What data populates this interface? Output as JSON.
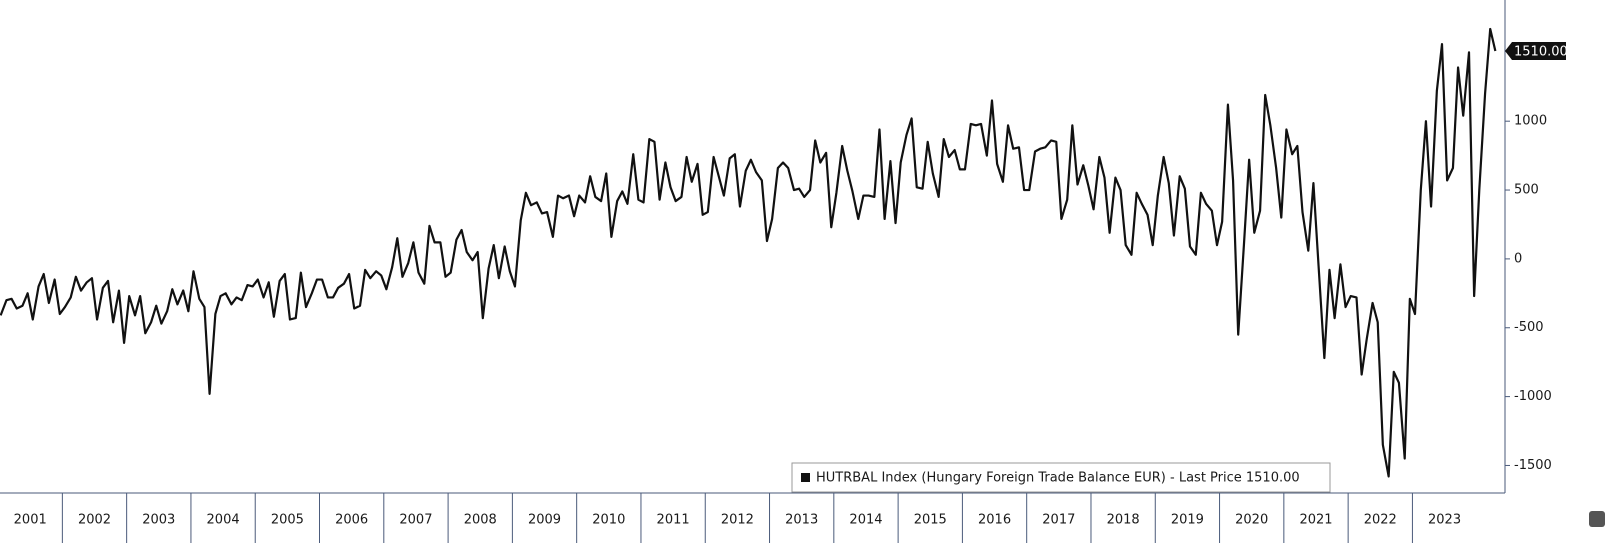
{
  "chart_data": {
    "type": "line",
    "series": [
      {
        "name": "HUTRBAL Index (Hungary Foreign Trade Balance EUR) - Last Price 1510.00",
        "color": "#111111",
        "values": [
          -410,
          -300,
          -290,
          -360,
          -340,
          -250,
          -440,
          -200,
          -110,
          -320,
          -150,
          -400,
          -350,
          -280,
          -130,
          -230,
          -170,
          -140,
          -440,
          -210,
          -160,
          -460,
          -230,
          -610,
          -270,
          -410,
          -270,
          -540,
          -460,
          -340,
          -470,
          -380,
          -220,
          -330,
          -230,
          -380,
          -90,
          -290,
          -350,
          -980,
          -400,
          -270,
          -250,
          -330,
          -280,
          -300,
          -190,
          -200,
          -150,
          -280,
          -170,
          -420,
          -160,
          -110,
          -440,
          -430,
          -100,
          -350,
          -250,
          -150,
          -150,
          -280,
          -280,
          -210,
          -180,
          -110,
          -360,
          -340,
          -80,
          -140,
          -90,
          -120,
          -220,
          -60,
          150,
          -130,
          -30,
          120,
          -100,
          -180,
          240,
          120,
          120,
          -130,
          -100,
          140,
          210,
          50,
          -10,
          50,
          -430,
          -70,
          100,
          -140,
          90,
          -90,
          -200,
          280,
          480,
          390,
          410,
          330,
          340,
          160,
          460,
          440,
          460,
          310,
          460,
          410,
          600,
          450,
          420,
          620,
          160,
          420,
          490,
          400,
          760,
          430,
          410,
          870,
          850,
          430,
          700,
          520,
          420,
          450,
          740,
          560,
          690,
          320,
          340,
          740,
          600,
          460,
          730,
          760,
          380,
          640,
          720,
          630,
          570,
          130,
          290,
          660,
          700,
          660,
          500,
          510,
          450,
          500,
          860,
          700,
          770,
          230,
          480,
          820,
          640,
          490,
          290,
          460,
          460,
          450,
          940,
          290,
          710,
          260,
          700,
          900,
          1020,
          520,
          510,
          850,
          620,
          450,
          870,
          740,
          790,
          650,
          650,
          980,
          970,
          980,
          750,
          1150,
          690,
          560,
          970,
          800,
          810,
          500,
          500,
          780,
          800,
          810,
          860,
          850,
          290,
          430,
          970,
          540,
          680,
          530,
          360,
          740,
          590,
          190,
          590,
          500,
          100,
          30,
          480,
          400,
          320,
          100,
          460,
          740,
          550,
          170,
          600,
          510,
          90,
          30,
          480,
          400,
          350,
          100,
          270,
          1120,
          570,
          -550,
          110,
          720,
          190,
          350,
          1190,
          970,
          660,
          300,
          940,
          760,
          820,
          340,
          60,
          550,
          -50,
          -720,
          -80,
          -430,
          -40,
          -350,
          -270,
          -280,
          -840,
          -580,
          -320,
          -460,
          -1350,
          -1580,
          -820,
          -900,
          -1450,
          -290,
          -400,
          500,
          1000,
          380,
          1220,
          1560,
          570,
          660,
          1390,
          1040,
          1500,
          -270,
          500,
          1200,
          1670,
          1510
        ]
      }
    ],
    "x": [
      2001.04,
      2001.13,
      2001.21,
      2001.29,
      2001.38,
      2001.46,
      2001.54,
      2001.63,
      2001.71,
      2001.79,
      2001.88,
      2001.96,
      2002.04,
      2002.13,
      2002.21,
      2002.29,
      2002.38,
      2002.46,
      2002.54,
      2002.63,
      2002.71,
      2002.79,
      2002.88,
      2002.96,
      2003.04,
      2003.13,
      2003.21,
      2003.29,
      2003.38,
      2003.46,
      2003.54,
      2003.63,
      2003.71,
      2003.79,
      2003.88,
      2003.96,
      2004.04,
      2004.13,
      2004.21,
      2004.29,
      2004.38,
      2004.46,
      2004.54,
      2004.63,
      2004.71,
      2004.79,
      2004.88,
      2004.96,
      2005.04,
      2005.13,
      2005.21,
      2005.29,
      2005.38,
      2005.46,
      2005.54,
      2005.63,
      2005.71,
      2005.79,
      2005.88,
      2005.96,
      2006.04,
      2006.13,
      2006.21,
      2006.29,
      2006.38,
      2006.46,
      2006.54,
      2006.63,
      2006.71,
      2006.79,
      2006.88,
      2006.96,
      2007.04,
      2007.13,
      2007.21,
      2007.29,
      2007.38,
      2007.46,
      2007.54,
      2007.63,
      2007.71,
      2007.79,
      2007.88,
      2007.96,
      2008.04,
      2008.13,
      2008.21,
      2008.29,
      2008.38,
      2008.46,
      2008.54,
      2008.63,
      2008.71,
      2008.79,
      2008.88,
      2008.96,
      2009.04,
      2009.13,
      2009.21,
      2009.29,
      2009.38,
      2009.46,
      2009.54,
      2009.63,
      2009.71,
      2009.79,
      2009.88,
      2009.96,
      2010.04,
      2010.13,
      2010.21,
      2010.29,
      2010.38,
      2010.46,
      2010.54,
      2010.63,
      2010.71,
      2010.79,
      2010.88,
      2010.96,
      2011.04,
      2011.13,
      2011.21,
      2011.29,
      2011.38,
      2011.46,
      2011.54,
      2011.63,
      2011.71,
      2011.79,
      2011.88,
      2011.96,
      2012.04,
      2012.13,
      2012.21,
      2012.29,
      2012.38,
      2012.46,
      2012.54,
      2012.63,
      2012.71,
      2012.79,
      2012.88,
      2012.96,
      2013.04,
      2013.13,
      2013.21,
      2013.29,
      2013.38,
      2013.46,
      2013.54,
      2013.63,
      2013.71,
      2013.79,
      2013.88,
      2013.96,
      2014.04,
      2014.13,
      2014.21,
      2014.29,
      2014.38,
      2014.46,
      2014.54,
      2014.63,
      2014.71,
      2014.79,
      2014.88,
      2014.96,
      2015.04,
      2015.13,
      2015.21,
      2015.29,
      2015.38,
      2015.46,
      2015.54,
      2015.63,
      2015.71,
      2015.79,
      2015.88,
      2015.96,
      2016.04,
      2016.13,
      2016.21,
      2016.29,
      2016.38,
      2016.46,
      2016.54,
      2016.63,
      2016.71,
      2016.79,
      2016.88,
      2016.96,
      2017.04,
      2017.13,
      2017.21,
      2017.29,
      2017.38,
      2017.46,
      2017.54,
      2017.63,
      2017.71,
      2017.79,
      2017.88,
      2017.96,
      2018.04,
      2018.13,
      2018.21,
      2018.29,
      2018.38,
      2018.46,
      2018.54,
      2018.63,
      2018.71,
      2018.79,
      2018.88,
      2018.96,
      2019.04,
      2019.13,
      2019.21,
      2019.29,
      2019.38,
      2019.46,
      2019.54,
      2019.63,
      2019.71,
      2019.79,
      2019.88,
      2019.96,
      2020.04,
      2020.13,
      2020.21,
      2020.29,
      2020.38,
      2020.46,
      2020.54,
      2020.63,
      2020.71,
      2020.79,
      2020.88,
      2020.96,
      2021.04,
      2021.13,
      2021.21,
      2021.29,
      2021.38,
      2021.46,
      2021.54,
      2021.63,
      2021.71,
      2021.79,
      2021.88,
      2021.96,
      2022.04,
      2022.13,
      2022.21,
      2022.29,
      2022.38,
      2022.46,
      2022.54,
      2022.63,
      2022.71,
      2022.79,
      2022.88,
      2022.96,
      2023.04,
      2023.13,
      2023.21,
      2023.29,
      2023.38,
      2023.46,
      2023.54,
      2023.63,
      2023.71,
      2023.79,
      2023.88,
      2023.96,
      2024.04,
      2024.13,
      2024.21,
      2024.29
    ],
    "xlim": [
      2001.03,
      2024.44
    ],
    "xticks": [
      {
        "value": 2001,
        "label": "2001"
      },
      {
        "value": 2002,
        "label": "2002"
      },
      {
        "value": 2003,
        "label": "2003"
      },
      {
        "value": 2004,
        "label": "2004"
      },
      {
        "value": 2005,
        "label": "2005"
      },
      {
        "value": 2006,
        "label": "2006"
      },
      {
        "value": 2007,
        "label": "2007"
      },
      {
        "value": 2008,
        "label": "2008"
      },
      {
        "value": 2009,
        "label": "2009"
      },
      {
        "value": 2010,
        "label": "2010"
      },
      {
        "value": 2011,
        "label": "2011"
      },
      {
        "value": 2012,
        "label": "2012"
      },
      {
        "value": 2013,
        "label": "2013"
      },
      {
        "value": 2014,
        "label": "2014"
      },
      {
        "value": 2015,
        "label": "2015"
      },
      {
        "value": 2016,
        "label": "2016"
      },
      {
        "value": 2017,
        "label": "2017"
      },
      {
        "value": 2018,
        "label": "2018"
      },
      {
        "value": 2019,
        "label": "2019"
      },
      {
        "value": 2020,
        "label": "2020"
      },
      {
        "value": 2021,
        "label": "2021"
      },
      {
        "value": 2022,
        "label": "2022"
      },
      {
        "value": 2023,
        "label": "2023"
      }
    ],
    "ylim": [
      -1700,
      1880
    ],
    "yticks": [
      -1500,
      -1000,
      -500,
      0,
      500,
      1000
    ],
    "last_price": {
      "value": 1510,
      "label": "1510.00"
    },
    "grid": false
  }
}
